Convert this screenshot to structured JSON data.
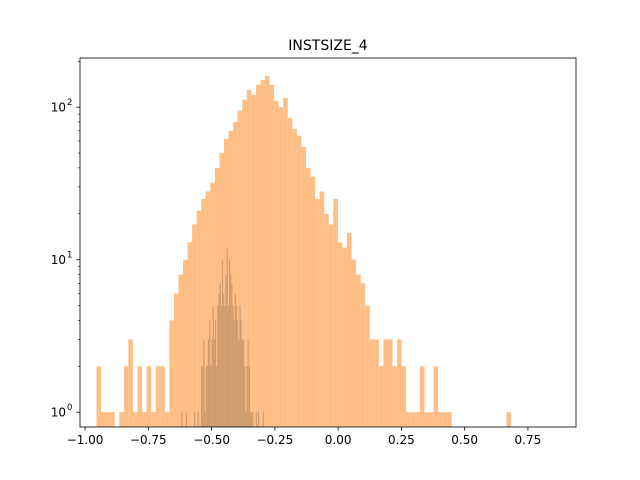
{
  "chart_data": {
    "type": "bar",
    "title": "INSTSIZE_4",
    "xlabel": "",
    "ylabel": "",
    "xlim": [
      -1.02,
      0.94
    ],
    "ylim": [
      0.8,
      210
    ],
    "yscale": "log",
    "grid": false,
    "x_ticks": [
      {
        "value": -1.0,
        "label": "−1.00"
      },
      {
        "value": -0.75,
        "label": "−0.75"
      },
      {
        "value": -0.5,
        "label": "−0.50"
      },
      {
        "value": -0.25,
        "label": "−0.25"
      },
      {
        "value": 0.0,
        "label": "0.00"
      },
      {
        "value": 0.25,
        "label": "0.25"
      },
      {
        "value": 0.5,
        "label": "0.50"
      },
      {
        "value": 0.75,
        "label": "0.75"
      }
    ],
    "y_ticks": [
      {
        "value": 1,
        "base": "10",
        "exp": "0"
      },
      {
        "value": 10,
        "base": "10",
        "exp": "1"
      },
      {
        "value": 100,
        "base": "10",
        "exp": "2"
      }
    ],
    "series": [
      {
        "color": "#ffbe86",
        "bin_start": -0.955,
        "bin_width": 0.018,
        "values": [
          2,
          1,
          1,
          1,
          0,
          1,
          2,
          3,
          1,
          2,
          1,
          2,
          1,
          2,
          2,
          1,
          4,
          6,
          8,
          10,
          13,
          17,
          21,
          25,
          28,
          32,
          40,
          50,
          62,
          70,
          80,
          95,
          112,
          130,
          120,
          140,
          150,
          160,
          140,
          110,
          100,
          115,
          85,
          72,
          65,
          55,
          40,
          35,
          25,
          28,
          20,
          17,
          25,
          13,
          12,
          15,
          10,
          8,
          7,
          5,
          3,
          3,
          2,
          3,
          3,
          2,
          3,
          2,
          1,
          1,
          1,
          2,
          1,
          1,
          2,
          1,
          1,
          1,
          0,
          0,
          0,
          0,
          0,
          0,
          0,
          0,
          0,
          0,
          0,
          0,
          1
        ]
      },
      {
        "color": "#cd9b6e",
        "bin_start": -0.62,
        "bin_width": 0.0046,
        "values": [
          1,
          0,
          0,
          0,
          1,
          0,
          0,
          0,
          0,
          0,
          0,
          1,
          0,
          0,
          1,
          0,
          0,
          2,
          2,
          3,
          1,
          2,
          2,
          3,
          4,
          2,
          3,
          5,
          3,
          4,
          2,
          5,
          6,
          7,
          5,
          10,
          6,
          5,
          8,
          12,
          5,
          10,
          8,
          7,
          5,
          4,
          6,
          5,
          4,
          3,
          5,
          4,
          3,
          3,
          2,
          1,
          2,
          3,
          2,
          1,
          1,
          1,
          0,
          0,
          1,
          0,
          1,
          0,
          0,
          0,
          1
        ]
      }
    ]
  }
}
